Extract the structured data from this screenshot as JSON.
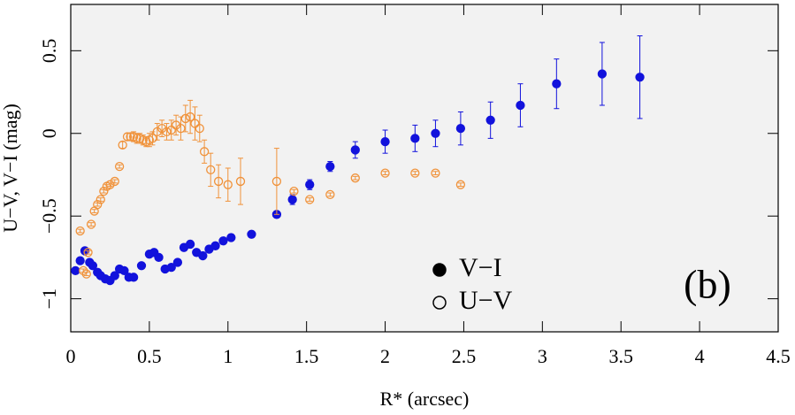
{
  "chart_data": {
    "type": "scatter",
    "xlabel": "R* (arcsec)",
    "ylabel": "U−V, V−I (mag)",
    "annotation": "(b)",
    "xlim": [
      0,
      4.5
    ],
    "ylim": [
      -1.2,
      0.78
    ],
    "xticks": [
      0,
      0.5,
      1,
      1.5,
      2,
      2.5,
      3,
      3.5,
      4,
      4.5
    ],
    "yticks": [
      {
        "value": -1,
        "label": "−1"
      },
      {
        "value": -0.5,
        "label": "−0.5"
      },
      0,
      0.5
    ],
    "legend": "lower center",
    "background": "#f2f2f2",
    "series": [
      {
        "name": "V−I",
        "color": "#1212dc",
        "marker": "filled",
        "x": [
          0.03,
          0.06,
          0.09,
          0.12,
          0.14,
          0.17,
          0.19,
          0.22,
          0.25,
          0.28,
          0.31,
          0.34,
          0.37,
          0.4,
          0.45,
          0.5,
          0.53,
          0.56,
          0.6,
          0.64,
          0.68,
          0.72,
          0.76,
          0.8,
          0.84,
          0.88,
          0.92,
          0.97,
          1.02,
          1.15,
          1.31,
          1.41,
          1.52,
          1.65,
          1.81,
          2.0,
          2.19,
          2.32,
          2.48,
          2.67,
          2.86,
          3.09,
          3.38,
          3.62
        ],
        "values": [
          -0.83,
          -0.77,
          -0.71,
          -0.78,
          -0.8,
          -0.84,
          -0.86,
          -0.88,
          -0.89,
          -0.86,
          -0.82,
          -0.83,
          -0.87,
          -0.87,
          -0.8,
          -0.73,
          -0.72,
          -0.75,
          -0.82,
          -0.81,
          -0.78,
          -0.69,
          -0.67,
          -0.72,
          -0.74,
          -0.7,
          -0.68,
          -0.65,
          -0.63,
          -0.61,
          -0.49,
          -0.4,
          -0.31,
          -0.2,
          -0.1,
          -0.05,
          -0.03,
          0.0,
          0.03,
          0.08,
          0.17,
          0.3,
          0.36,
          0.34
        ],
        "errors": [
          0.01,
          0.01,
          0.01,
          0.01,
          0.01,
          0.01,
          0.01,
          0.01,
          0.01,
          0.01,
          0.01,
          0.01,
          0.01,
          0.01,
          0.01,
          0.01,
          0.01,
          0.01,
          0.01,
          0.01,
          0.01,
          0.02,
          0.02,
          0.02,
          0.02,
          0.02,
          0.02,
          0.02,
          0.02,
          0.02,
          0.02,
          0.03,
          0.03,
          0.03,
          0.05,
          0.07,
          0.08,
          0.08,
          0.1,
          0.11,
          0.13,
          0.15,
          0.19,
          0.25
        ]
      },
      {
        "name": "U−V",
        "color": "#f0923a",
        "marker": "open",
        "x": [
          0.06,
          0.08,
          0.1,
          0.11,
          0.13,
          0.15,
          0.17,
          0.19,
          0.21,
          0.23,
          0.25,
          0.28,
          0.31,
          0.33,
          0.36,
          0.38,
          0.4,
          0.42,
          0.44,
          0.46,
          0.48,
          0.5,
          0.52,
          0.55,
          0.58,
          0.61,
          0.64,
          0.67,
          0.7,
          0.73,
          0.76,
          0.79,
          0.82,
          0.85,
          0.89,
          0.94,
          1.0,
          1.08,
          1.31,
          1.42,
          1.52,
          1.65,
          1.81,
          2.0,
          2.19,
          2.32,
          2.48
        ],
        "values": [
          -0.59,
          -0.83,
          -0.85,
          -0.72,
          -0.55,
          -0.47,
          -0.43,
          -0.4,
          -0.35,
          -0.32,
          -0.31,
          -0.29,
          -0.2,
          -0.07,
          -0.02,
          -0.02,
          -0.02,
          -0.03,
          -0.03,
          -0.04,
          -0.05,
          -0.04,
          -0.03,
          0.01,
          0.03,
          0.01,
          0.02,
          0.05,
          0.03,
          0.09,
          0.1,
          0.06,
          0.03,
          -0.11,
          -0.22,
          -0.29,
          -0.31,
          -0.29,
          -0.29,
          -0.35,
          -0.4,
          -0.37,
          -0.27,
          -0.24,
          -0.24,
          -0.24,
          -0.31
        ],
        "errors": [
          0.01,
          0.01,
          0.01,
          0.01,
          0.01,
          0.01,
          0.01,
          0.01,
          0.01,
          0.01,
          0.01,
          0.01,
          0.01,
          0.02,
          0.02,
          0.02,
          0.03,
          0.03,
          0.03,
          0.03,
          0.03,
          0.04,
          0.04,
          0.05,
          0.05,
          0.05,
          0.06,
          0.06,
          0.07,
          0.08,
          0.1,
          0.1,
          0.08,
          0.07,
          0.1,
          0.1,
          0.1,
          0.14,
          0.2,
          0.01,
          0.01,
          0.01,
          0.01,
          0.01,
          0.01,
          0.01,
          0.01
        ]
      }
    ]
  }
}
